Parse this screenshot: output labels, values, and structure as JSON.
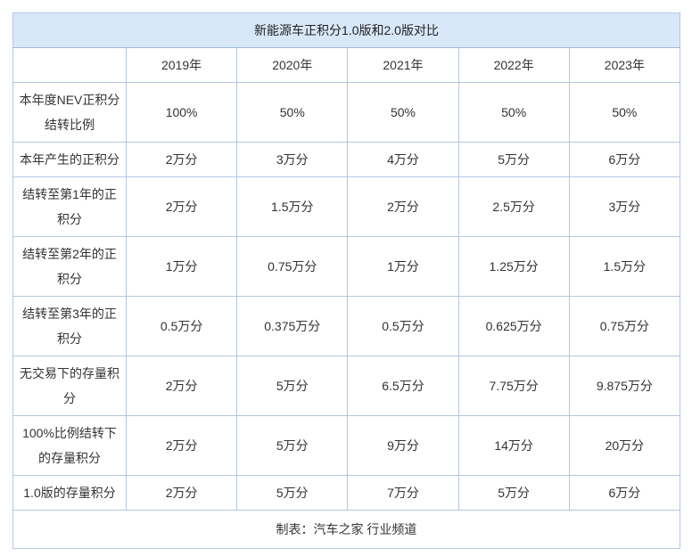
{
  "table": {
    "title": "新能源车正积分1.0版和2.0版对比",
    "columns": [
      "",
      "2019年",
      "2020年",
      "2021年",
      "2022年",
      "2023年"
    ],
    "rows": [
      {
        "label": "本年度NEV正积分\n结转比例",
        "values": [
          "100%",
          "50%",
          "50%",
          "50%",
          "50%"
        ]
      },
      {
        "label": "本年产生的正积分",
        "values": [
          "2万分",
          "3万分",
          "4万分",
          "5万分",
          "6万分"
        ]
      },
      {
        "label": "结转至第1年的正\n积分",
        "values": [
          "2万分",
          "1.5万分",
          "2万分",
          "2.5万分",
          "3万分"
        ]
      },
      {
        "label": "结转至第2年的正\n积分",
        "values": [
          "1万分",
          "0.75万分",
          "1万分",
          "1.25万分",
          "1.5万分"
        ]
      },
      {
        "label": "结转至第3年的正\n积分",
        "values": [
          "0.5万分",
          "0.375万分",
          "0.5万分",
          "0.625万分",
          "0.75万分"
        ]
      },
      {
        "label": "无交易下的存量积\n分",
        "values": [
          "2万分",
          "5万分",
          "6.5万分",
          "7.75万分",
          "9.875万分"
        ]
      },
      {
        "label": "100%比例结转下\n的存量积分",
        "values": [
          "2万分",
          "5万分",
          "9万分",
          "14万分",
          "20万分"
        ]
      },
      {
        "label": "1.0版的存量积分",
        "values": [
          "2万分",
          "5万分",
          "7万分",
          "5万分",
          "6万分"
        ]
      }
    ],
    "footer": "制表：汽车之家 行业频道",
    "colors": {
      "title_background": "#d8e8f9",
      "border": "#b4c6e4",
      "text": "#333333"
    }
  },
  "chart_data": {
    "type": "table",
    "title": "新能源车正积分1.0版和2.0版对比",
    "columns": [
      "",
      "2019年",
      "2020年",
      "2021年",
      "2022年",
      "2023年"
    ],
    "rows": [
      [
        "本年度NEV正积分结转比例",
        "100%",
        "50%",
        "50%",
        "50%",
        "50%"
      ],
      [
        "本年产生的正积分",
        "2万分",
        "3万分",
        "4万分",
        "5万分",
        "6万分"
      ],
      [
        "结转至第1年的正积分",
        "2万分",
        "1.5万分",
        "2万分",
        "2.5万分",
        "3万分"
      ],
      [
        "结转至第2年的正积分",
        "1万分",
        "0.75万分",
        "1万分",
        "1.25万分",
        "1.5万分"
      ],
      [
        "结转至第3年的正积分",
        "0.5万分",
        "0.375万分",
        "0.5万分",
        "0.625万分",
        "0.75万分"
      ],
      [
        "无交易下的存量积分",
        "2万分",
        "5万分",
        "6.5万分",
        "7.75万分",
        "9.875万分"
      ],
      [
        "100%比例结转下的存量积分",
        "2万分",
        "5万分",
        "9万分",
        "14万分",
        "20万分"
      ],
      [
        "1.0版的存量积分",
        "2万分",
        "5万分",
        "7万分",
        "5万分",
        "6万分"
      ]
    ],
    "footer": "制表：汽车之家 行业频道"
  }
}
